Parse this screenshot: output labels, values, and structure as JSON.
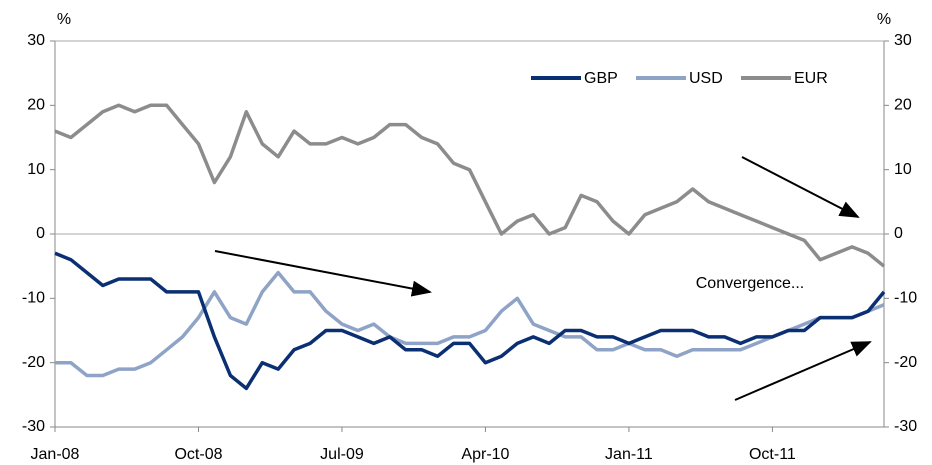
{
  "chart_data": {
    "type": "line",
    "ylabel": "%",
    "y2label": "%",
    "annotation": "Convergence...",
    "categories": [
      "Jan-08",
      null,
      null,
      null,
      null,
      null,
      null,
      null,
      null,
      "Oct-08",
      null,
      null,
      null,
      null,
      null,
      null,
      null,
      null,
      "Jul-09",
      null,
      null,
      null,
      null,
      null,
      null,
      null,
      null,
      "Apr-10",
      null,
      null,
      null,
      null,
      null,
      null,
      null,
      null,
      "Jan-11",
      null,
      null,
      null,
      null,
      null,
      null,
      null,
      null,
      "Oct-11",
      null,
      null,
      null,
      null,
      null,
      null,
      null
    ],
    "series": [
      {
        "name": "GBP",
        "color": "#0b2f73",
        "values": [
          -3,
          -4,
          -6,
          -8,
          -7,
          -7,
          -7,
          -9,
          -9,
          -9,
          -16,
          -22,
          -24,
          -20,
          -21,
          -18,
          -17,
          -15,
          -15,
          -16,
          -17,
          -16,
          -18,
          -18,
          -19,
          -17,
          -17,
          -20,
          -19,
          -17,
          -16,
          -17,
          -15,
          -15,
          -16,
          -16,
          -17,
          -16,
          -15,
          -15,
          -15,
          -16,
          -16,
          -17,
          -16,
          -16,
          -15,
          -15,
          -13,
          -13,
          -13,
          -12,
          -9
        ]
      },
      {
        "name": "USD",
        "color": "#8ea3c6",
        "values": [
          -20,
          -20,
          -22,
          -22,
          -21,
          -21,
          -20,
          -18,
          -16,
          -13,
          -9,
          -13,
          -14,
          -9,
          -6,
          -9,
          -9,
          -12,
          -14,
          -15,
          -14,
          -16,
          -17,
          -17,
          -17,
          -16,
          -16,
          -15,
          -12,
          -10,
          -14,
          -15,
          -16,
          -16,
          -18,
          -18,
          -17,
          -18,
          -18,
          -19,
          -18,
          -18,
          -18,
          -18,
          -17,
          -16,
          -15,
          -14,
          -13,
          -13,
          -13,
          -12,
          -11
        ]
      },
      {
        "name": "EUR",
        "color": "#8c8c8c",
        "values": [
          16,
          15,
          17,
          19,
          20,
          19,
          20,
          20,
          17,
          14,
          8,
          12,
          19,
          14,
          12,
          16,
          14,
          14,
          15,
          14,
          15,
          17,
          17,
          15,
          14,
          11,
          10,
          5,
          0,
          2,
          3,
          0,
          1,
          6,
          5,
          2,
          0,
          3,
          4,
          5,
          7,
          5,
          4,
          3,
          2,
          1,
          0,
          -1,
          -4,
          -3,
          -2,
          -3,
          -5
        ]
      }
    ],
    "ylim": [
      -30,
      30
    ],
    "yticks": [
      -30,
      -20,
      -10,
      0,
      10,
      20,
      30
    ],
    "y2lim": [
      -30,
      30
    ],
    "y2ticks": [
      -30,
      -20,
      -10,
      0,
      10,
      20,
      30
    ],
    "legend": "top-right"
  }
}
